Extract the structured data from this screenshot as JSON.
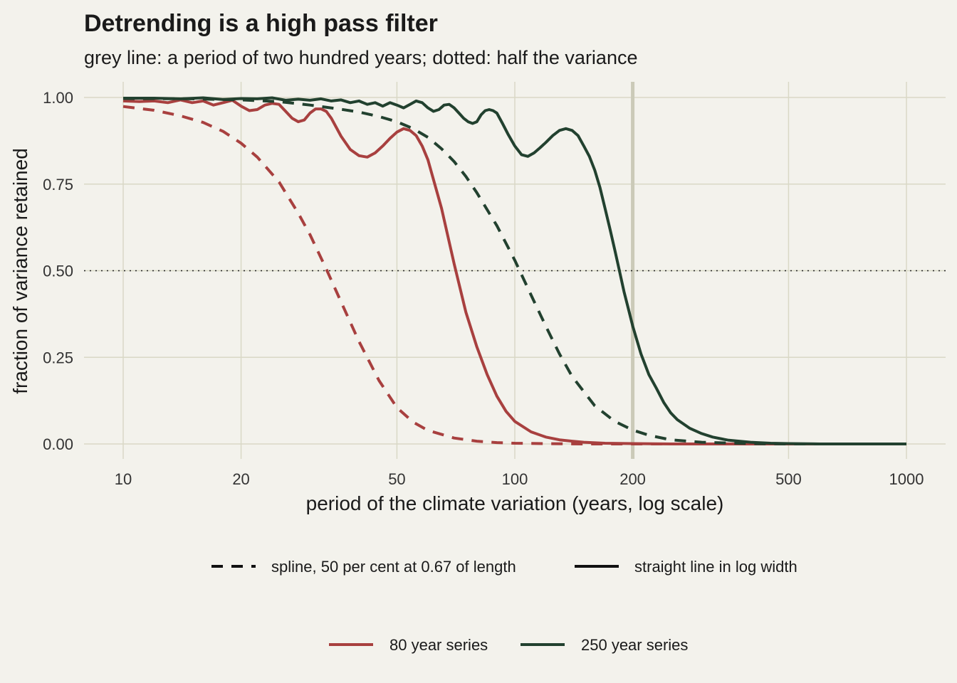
{
  "chart_data": {
    "type": "line",
    "title": "Detrending is a high pass filter",
    "subtitle": "grey line: a period of two hundred years; dotted: half the variance",
    "xlabel": "period of the climate variation (years, log scale)",
    "ylabel": "fraction of variance retained",
    "x_scale": "log",
    "xlim": [
      10,
      1000
    ],
    "ylim": [
      0,
      1
    ],
    "x_ticks": [
      10,
      20,
      50,
      100,
      200,
      500,
      1000
    ],
    "x_tick_labels": [
      "10",
      "20",
      "50",
      "100",
      "200",
      "500",
      "1000"
    ],
    "y_ticks": [
      0,
      0.25,
      0.5,
      0.75,
      1.0
    ],
    "y_tick_labels": [
      "0.00",
      "0.25",
      "0.50",
      "0.75",
      "1.00"
    ],
    "reference_lines": [
      {
        "axis": "x",
        "value": 200,
        "style": "grey"
      },
      {
        "axis": "y",
        "value": 0.5,
        "style": "dotted"
      }
    ],
    "grid": true,
    "legend_placement": "bottom",
    "legends": [
      {
        "type": "linetype",
        "entries": [
          {
            "label": "spline, 50 per cent at 0.67 of length",
            "linetype": "dashed"
          },
          {
            "label": "straight line in log width",
            "linetype": "solid"
          }
        ]
      },
      {
        "type": "color",
        "entries": [
          {
            "label": "80 year series",
            "color": "#a8403f"
          },
          {
            "label": "250 year series",
            "color": "#22412f"
          }
        ]
      }
    ],
    "colors": {
      "background": "#f3f2ec",
      "grid": "#d9d8c6",
      "red": "#a8403f",
      "green": "#22412f",
      "text": "#1a1a1a"
    },
    "series": [
      {
        "series_color": "red",
        "linetype": "dashed",
        "x": [
          10,
          12,
          14,
          16,
          18,
          20,
          22,
          25,
          28,
          30,
          33,
          36,
          40,
          45,
          50,
          55,
          60,
          70,
          80,
          90,
          100,
          120,
          150,
          200,
          300,
          500,
          1000
        ],
        "y": [
          0.974,
          0.963,
          0.947,
          0.928,
          0.902,
          0.868,
          0.828,
          0.756,
          0.666,
          0.604,
          0.505,
          0.41,
          0.296,
          0.183,
          0.105,
          0.063,
          0.039,
          0.017,
          0.008,
          0.004,
          0.002,
          0.001,
          0.0,
          0.0,
          0.0,
          0.0,
          0.0
        ]
      },
      {
        "series_color": "red",
        "linetype": "solid",
        "x": [
          10,
          11,
          12,
          13,
          14,
          15,
          16,
          17,
          18,
          19,
          20,
          21,
          22,
          23,
          24,
          25,
          26,
          27,
          28,
          29,
          30,
          31,
          32,
          33,
          34,
          36,
          38,
          40,
          42,
          44,
          46,
          48,
          50,
          52,
          54,
          56,
          58,
          60,
          65,
          70,
          75,
          80,
          85,
          90,
          95,
          100,
          110,
          120,
          130,
          140,
          150,
          170,
          200,
          250,
          300,
          500,
          1000
        ],
        "y": [
          0.99,
          0.988,
          0.99,
          0.985,
          0.993,
          0.985,
          0.99,
          0.978,
          0.985,
          0.992,
          0.975,
          0.962,
          0.965,
          0.978,
          0.983,
          0.98,
          0.96,
          0.94,
          0.93,
          0.935,
          0.955,
          0.967,
          0.967,
          0.96,
          0.94,
          0.888,
          0.85,
          0.832,
          0.828,
          0.84,
          0.86,
          0.882,
          0.9,
          0.91,
          0.905,
          0.89,
          0.86,
          0.82,
          0.68,
          0.52,
          0.38,
          0.28,
          0.2,
          0.138,
          0.094,
          0.065,
          0.035,
          0.02,
          0.012,
          0.008,
          0.005,
          0.002,
          0.001,
          0.0,
          0.0,
          0.0,
          0.0
        ]
      },
      {
        "series_color": "green",
        "linetype": "dashed",
        "x": [
          10,
          15,
          20,
          25,
          30,
          35,
          40,
          45,
          50,
          55,
          60,
          65,
          70,
          75,
          80,
          90,
          100,
          110,
          120,
          130,
          140,
          160,
          180,
          200,
          220,
          250,
          300,
          400,
          500,
          1000
        ],
        "y": [
          0.997,
          0.996,
          0.993,
          0.988,
          0.978,
          0.968,
          0.958,
          0.945,
          0.93,
          0.91,
          0.885,
          0.852,
          0.815,
          0.772,
          0.725,
          0.63,
          0.53,
          0.43,
          0.34,
          0.26,
          0.195,
          0.11,
          0.065,
          0.04,
          0.025,
          0.012,
          0.005,
          0.001,
          0.0,
          0.0
        ]
      },
      {
        "series_color": "green",
        "linetype": "solid",
        "x": [
          10,
          12,
          14,
          16,
          18,
          20,
          22,
          24,
          26,
          28,
          30,
          32,
          34,
          36,
          38,
          40,
          42,
          44,
          46,
          48,
          50,
          52,
          54,
          56,
          58,
          60,
          62,
          64,
          66,
          68,
          70,
          72,
          74,
          76,
          78,
          80,
          82,
          84,
          86,
          88,
          90,
          93,
          96,
          100,
          104,
          108,
          112,
          116,
          120,
          125,
          130,
          135,
          140,
          145,
          150,
          155,
          160,
          165,
          170,
          175,
          180,
          185,
          190,
          195,
          200,
          210,
          220,
          230,
          240,
          250,
          260,
          280,
          300,
          320,
          350,
          400,
          450,
          500,
          600,
          700,
          800,
          1000
        ],
        "y": [
          0.998,
          0.998,
          0.996,
          0.999,
          0.994,
          0.997,
          0.996,
          0.999,
          0.992,
          0.995,
          0.992,
          0.996,
          0.99,
          0.993,
          0.985,
          0.99,
          0.98,
          0.985,
          0.975,
          0.985,
          0.978,
          0.97,
          0.98,
          0.99,
          0.985,
          0.97,
          0.96,
          0.965,
          0.978,
          0.98,
          0.97,
          0.955,
          0.94,
          0.93,
          0.925,
          0.93,
          0.95,
          0.962,
          0.965,
          0.962,
          0.955,
          0.925,
          0.895,
          0.86,
          0.835,
          0.83,
          0.84,
          0.855,
          0.87,
          0.89,
          0.905,
          0.91,
          0.905,
          0.89,
          0.86,
          0.83,
          0.79,
          0.74,
          0.68,
          0.62,
          0.56,
          0.5,
          0.44,
          0.39,
          0.34,
          0.26,
          0.2,
          0.16,
          0.12,
          0.09,
          0.07,
          0.045,
          0.03,
          0.02,
          0.011,
          0.005,
          0.002,
          0.001,
          0.0,
          0.0,
          0.0,
          0.0
        ]
      }
    ]
  }
}
